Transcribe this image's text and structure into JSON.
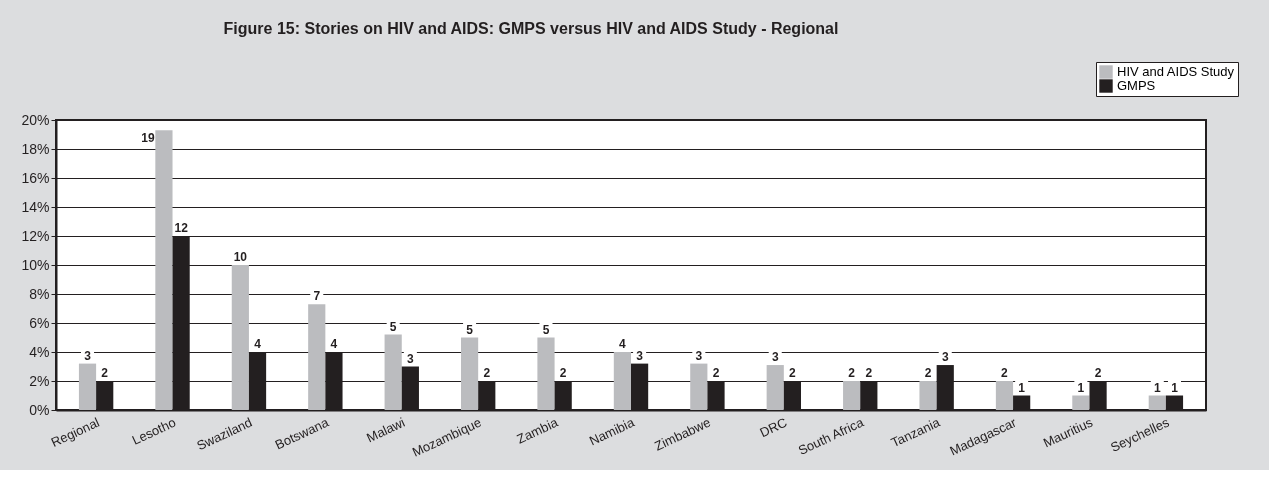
{
  "chart_data": {
    "type": "bar",
    "title": "Figure 15: Stories on HIV and AIDS: GMPS versus HIV and AIDS Study - Regional",
    "categories": [
      "Regional",
      "Lesotho",
      "Swaziland",
      "Botswana",
      "Malawi",
      "Mozambique",
      "Zambia",
      "Namibia",
      "Zimbabwe",
      "DRC",
      "South Africa",
      "Tanzania",
      "Madagascar",
      "Mauritius",
      "Seychelles"
    ],
    "series": [
      {
        "name": "HIV and AIDS Study",
        "color": "#bbbcbf",
        "values": [
          3.2,
          19.3,
          10.0,
          7.3,
          5.2,
          5.0,
          5.0,
          4.0,
          3.2,
          3.1,
          2.0,
          2.0,
          2.0,
          1.0,
          1.0
        ],
        "value_labels": [
          "3",
          "19",
          "10",
          "7",
          "5",
          "5",
          "5",
          "4",
          "3",
          "3",
          "2",
          "2",
          "2",
          "1",
          "1"
        ]
      },
      {
        "name": "GMPS",
        "color": "#231f20",
        "values": [
          2.0,
          12.0,
          4.0,
          4.0,
          3.0,
          2.0,
          2.0,
          3.2,
          2.0,
          2.0,
          2.0,
          3.1,
          1.0,
          2.0,
          1.0
        ],
        "value_labels": [
          "2",
          "12",
          "4",
          "4",
          "3",
          "2",
          "2",
          "3",
          "2",
          "2",
          "2",
          "3",
          "1",
          "2",
          "1"
        ]
      }
    ],
    "ylim": [
      0,
      20
    ],
    "yticks": [
      {
        "value": 0,
        "label": "0%"
      },
      {
        "value": 2,
        "label": "2%"
      },
      {
        "value": 4,
        "label": "4%"
      },
      {
        "value": 6,
        "label": "6%"
      },
      {
        "value": 8,
        "label": "8%"
      },
      {
        "value": 10,
        "label": "10%"
      },
      {
        "value": 12,
        "label": "12%"
      },
      {
        "value": 14,
        "label": "14%"
      },
      {
        "value": 16,
        "label": "16%"
      },
      {
        "value": 18,
        "label": "18%"
      },
      {
        "value": 20,
        "label": "20%"
      }
    ],
    "grid": "y",
    "legend": "top right"
  }
}
